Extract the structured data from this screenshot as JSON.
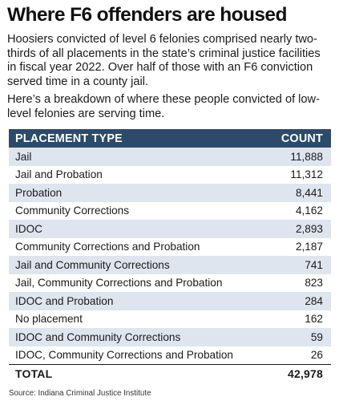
{
  "title": "Where F6 offenders are housed",
  "intro": "Hoosiers convicted of level 6 felonies comprised nearly two-thirds of all placements in the state’s criminal justice facilities in fiscal year 2022. Over half of those with an F6 conviction served time in a county jail.",
  "intro2": "Here’s a breakdown of where these people convicted of low-level felonies are serving time.",
  "table": {
    "headers": [
      "PLACEMENT TYPE",
      "COUNT"
    ],
    "rows": [
      [
        "Jail",
        "11,888"
      ],
      [
        "Jail and Probation",
        "11,312"
      ],
      [
        "Probation",
        "8,441"
      ],
      [
        "Community Corrections",
        "4,162"
      ],
      [
        "IDOC",
        "2,893"
      ],
      [
        "Community Corrections and Probation",
        "2,187"
      ],
      [
        "Jail and Community Corrections",
        "741"
      ],
      [
        "Jail, Community Corrections and Probation",
        "823"
      ],
      [
        "IDOC and Probation",
        "284"
      ],
      [
        "No placement",
        "162"
      ],
      [
        "IDOC and Community Corrections",
        "59"
      ],
      [
        "IDOC, Community Corrections and Probation",
        "26"
      ]
    ],
    "total": [
      "TOTAL",
      "42,978"
    ]
  },
  "source": "Source: Indiana Criminal Justice Institute",
  "chart_data": {
    "type": "table",
    "title": "Where F6 offenders are housed",
    "columns": [
      "PLACEMENT TYPE",
      "COUNT"
    ],
    "categories": [
      "Jail",
      "Jail and Probation",
      "Probation",
      "Community Corrections",
      "IDOC",
      "Community Corrections and Probation",
      "Jail and Community Corrections",
      "Jail, Community Corrections and Probation",
      "IDOC and Probation",
      "No placement",
      "IDOC and Community Corrections",
      "IDOC, Community Corrections and Probation"
    ],
    "values": [
      11888,
      11312,
      8441,
      4162,
      2893,
      2187,
      741,
      823,
      284,
      162,
      59,
      26
    ],
    "total": 42978
  },
  "colors": {
    "header_bg": "#2c4a6a",
    "header_text": "#ffffff",
    "stripe": "#dfe5ee"
  }
}
